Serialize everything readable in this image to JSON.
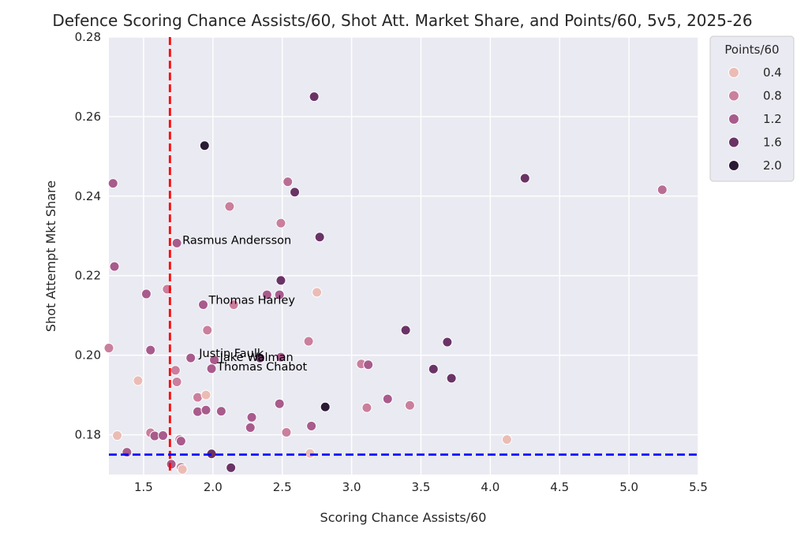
{
  "chart_data": {
    "type": "scatter",
    "title": "Defence Scoring Chance Assists/60, Shot Att. Market Share, and Points/60, 5v5, 2025-26",
    "xlabel": "Scoring Chance Assists/60",
    "ylabel": "Shot Attempt Mkt Share",
    "xlim": [
      1.25,
      5.5
    ],
    "ylim": [
      0.17,
      0.28
    ],
    "x_ticks": [
      1.5,
      2.0,
      2.5,
      3.0,
      3.5,
      4.0,
      4.5,
      5.0,
      5.5
    ],
    "x_tick_labels": [
      "1.5",
      "2.0",
      "2.5",
      "3.0",
      "3.5",
      "4.0",
      "4.5",
      "5.0",
      "5.5"
    ],
    "y_ticks": [
      0.18,
      0.2,
      0.22,
      0.24,
      0.26,
      0.28
    ],
    "y_tick_labels": [
      "0.18",
      "0.20",
      "0.22",
      "0.24",
      "0.26",
      "0.28"
    ],
    "grid": true,
    "reference_lines": [
      {
        "orientation": "vertical",
        "value": 1.69,
        "color": "#ff0000",
        "style": "dashed"
      },
      {
        "orientation": "horizontal",
        "value": 0.175,
        "color": "#0000ff",
        "style": "dashed"
      }
    ],
    "color_encoding": {
      "legend_title": "Points/60",
      "legend_placement": "outside-right-top",
      "legend_entries": [
        {
          "label": "0.4",
          "color": "#ebbcb5"
        },
        {
          "label": "0.8",
          "color": "#ca7f9c"
        },
        {
          "label": "1.2",
          "color": "#a85b8c"
        },
        {
          "label": "1.6",
          "color": "#6a3366"
        },
        {
          "label": "2.0",
          "color": "#2a1a33"
        }
      ]
    },
    "points": [
      {
        "x": 2.73,
        "y": 0.265,
        "c": 1.6
      },
      {
        "x": 1.94,
        "y": 0.2527,
        "c": 2.0
      },
      {
        "x": 1.28,
        "y": 0.2432,
        "c": 1.2
      },
      {
        "x": 2.54,
        "y": 0.2436,
        "c": 1.0
      },
      {
        "x": 2.59,
        "y": 0.241,
        "c": 1.6
      },
      {
        "x": 4.25,
        "y": 0.2445,
        "c": 1.6
      },
      {
        "x": 5.24,
        "y": 0.2416,
        "c": 1.0
      },
      {
        "x": 2.12,
        "y": 0.2374,
        "c": 0.8
      },
      {
        "x": 2.49,
        "y": 0.2332,
        "c": 0.8
      },
      {
        "x": 1.74,
        "y": 0.2282,
        "c": 1.2
      },
      {
        "x": 2.77,
        "y": 0.2297,
        "c": 1.6
      },
      {
        "x": 1.29,
        "y": 0.2223,
        "c": 1.2
      },
      {
        "x": 2.49,
        "y": 0.2188,
        "c": 1.6
      },
      {
        "x": 1.52,
        "y": 0.2154,
        "c": 1.2
      },
      {
        "x": 1.67,
        "y": 0.2166,
        "c": 0.8
      },
      {
        "x": 2.39,
        "y": 0.2152,
        "c": 1.2
      },
      {
        "x": 2.48,
        "y": 0.2152,
        "c": 1.2
      },
      {
        "x": 2.75,
        "y": 0.2158,
        "c": 0.4
      },
      {
        "x": 1.93,
        "y": 0.2127,
        "c": 1.2
      },
      {
        "x": 2.15,
        "y": 0.2127,
        "c": 0.8
      },
      {
        "x": 1.96,
        "y": 0.2063,
        "c": 0.8
      },
      {
        "x": 3.39,
        "y": 0.2063,
        "c": 1.6
      },
      {
        "x": 1.25,
        "y": 0.2018,
        "c": 0.8
      },
      {
        "x": 1.55,
        "y": 0.2013,
        "c": 1.2
      },
      {
        "x": 2.69,
        "y": 0.2035,
        "c": 0.8
      },
      {
        "x": 3.69,
        "y": 0.2033,
        "c": 1.6
      },
      {
        "x": 1.84,
        "y": 0.1993,
        "c": 1.2
      },
      {
        "x": 2.01,
        "y": 0.1988,
        "c": 1.2
      },
      {
        "x": 2.34,
        "y": 0.1993,
        "c": 1.6
      },
      {
        "x": 2.49,
        "y": 0.1995,
        "c": 1.2
      },
      {
        "x": 3.07,
        "y": 0.1978,
        "c": 0.8
      },
      {
        "x": 3.12,
        "y": 0.1976,
        "c": 1.2
      },
      {
        "x": 1.73,
        "y": 0.1962,
        "c": 0.8
      },
      {
        "x": 1.99,
        "y": 0.1966,
        "c": 1.2
      },
      {
        "x": 3.59,
        "y": 0.1965,
        "c": 1.6
      },
      {
        "x": 1.46,
        "y": 0.1936,
        "c": 0.4
      },
      {
        "x": 1.74,
        "y": 0.1933,
        "c": 0.8
      },
      {
        "x": 3.72,
        "y": 0.1942,
        "c": 1.6
      },
      {
        "x": 1.89,
        "y": 0.1894,
        "c": 0.8
      },
      {
        "x": 1.95,
        "y": 0.19,
        "c": 0.4
      },
      {
        "x": 3.26,
        "y": 0.189,
        "c": 1.2
      },
      {
        "x": 2.48,
        "y": 0.1878,
        "c": 1.2
      },
      {
        "x": 2.81,
        "y": 0.187,
        "c": 2.0
      },
      {
        "x": 3.11,
        "y": 0.1868,
        "c": 0.8
      },
      {
        "x": 3.42,
        "y": 0.1874,
        "c": 0.8
      },
      {
        "x": 1.89,
        "y": 0.1858,
        "c": 1.2
      },
      {
        "x": 1.95,
        "y": 0.1862,
        "c": 1.2
      },
      {
        "x": 2.06,
        "y": 0.1859,
        "c": 1.2
      },
      {
        "x": 2.28,
        "y": 0.1844,
        "c": 1.2
      },
      {
        "x": 2.27,
        "y": 0.1818,
        "c": 1.2
      },
      {
        "x": 2.71,
        "y": 0.1822,
        "c": 1.2
      },
      {
        "x": 1.31,
        "y": 0.1798,
        "c": 0.4
      },
      {
        "x": 1.55,
        "y": 0.1805,
        "c": 0.8
      },
      {
        "x": 1.58,
        "y": 0.1797,
        "c": 1.2
      },
      {
        "x": 1.64,
        "y": 0.1798,
        "c": 1.2
      },
      {
        "x": 1.76,
        "y": 0.1788,
        "c": 0.8
      },
      {
        "x": 1.77,
        "y": 0.1784,
        "c": 1.2
      },
      {
        "x": 2.53,
        "y": 0.1806,
        "c": 0.8
      },
      {
        "x": 4.12,
        "y": 0.1788,
        "c": 0.4
      },
      {
        "x": 1.38,
        "y": 0.1756,
        "c": 1.2
      },
      {
        "x": 1.99,
        "y": 0.1752,
        "c": 1.6
      },
      {
        "x": 2.7,
        "y": 0.1753,
        "c": 0.4
      },
      {
        "x": 1.7,
        "y": 0.1726,
        "c": 1.2
      },
      {
        "x": 1.77,
        "y": 0.1718,
        "c": 0.8
      },
      {
        "x": 1.78,
        "y": 0.1713,
        "c": 0.4
      },
      {
        "x": 2.13,
        "y": 0.1717,
        "c": 1.6
      }
    ],
    "annotations": [
      {
        "text": "Rasmus Andersson",
        "x": 1.78,
        "y": 0.229
      },
      {
        "text": "Thomas Harley",
        "x": 1.97,
        "y": 0.2139
      },
      {
        "text": "Justin Faulk",
        "x": 1.9,
        "y": 0.2005
      },
      {
        "text": "Jake Walman",
        "x": 2.05,
        "y": 0.1995
      },
      {
        "text": "Thomas Chabot",
        "x": 2.03,
        "y": 0.1972
      }
    ]
  }
}
